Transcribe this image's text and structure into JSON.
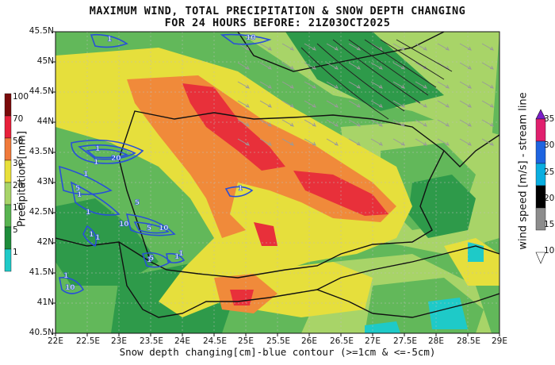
{
  "title_line1": "MAXIMUM WIND, TOTAL PRECIPITATION & SNOW DEPTH CHANGING",
  "title_line2": "FOR 24 HOURS BEFORE: 21Z03OCT2025",
  "x_axis_caption": "Snow depth changing[cm]-blue contour (>=1cm & <=-5cm)",
  "x_ticks": [
    "22E",
    "22.5E",
    "23E",
    "23.5E",
    "24E",
    "24.5E",
    "25E",
    "25.5E",
    "26E",
    "26.5E",
    "27E",
    "27.5E",
    "28E",
    "28.5E",
    "29E"
  ],
  "y_ticks": [
    "45.5N",
    "45N",
    "44.5N",
    "44N",
    "43.5N",
    "43N",
    "42.5N",
    "42N",
    "41.5N",
    "41N",
    "40.5N"
  ],
  "precip_colorbar": {
    "title": "Precipitation [mm]",
    "labels": [
      "100",
      "70",
      "50",
      "30",
      "20",
      "10",
      "5",
      "1"
    ],
    "colors": [
      "#7a0a0a",
      "#e8203a",
      "#f07a3a",
      "#e8e03a",
      "#a8d468",
      "#58b450",
      "#1e8c3a",
      "#1ecac8"
    ]
  },
  "wind_colorbar": {
    "title": "wind speed [m/s] - stream line",
    "labels": [
      "35",
      "30",
      "25",
      "20",
      "15",
      "10"
    ],
    "colors": [
      "#7a1ec8",
      "#e0206e",
      "#1e64e0",
      "#0aaee0",
      "#000000",
      "#8c8c8c",
      "#ffffff"
    ]
  },
  "snow_contour_labels": [
    "1",
    "1",
    "5",
    "10",
    "20",
    "1",
    "1",
    "1",
    "5",
    "1",
    "5",
    "1",
    "10",
    "1",
    "5",
    "1",
    "1",
    "1",
    "10",
    "1",
    "10",
    "1"
  ],
  "colors": {
    "land_dark_green": "#2e9a4a",
    "land_mid_green": "#62b85a",
    "land_light_green": "#a8d468",
    "yellow": "#e6df3c",
    "orange": "#f08a3a",
    "red": "#e8303a",
    "cyan": "#1ecac8",
    "border": "#111111",
    "snow_contour": "#2850d8",
    "stream": "#9a9a9a"
  }
}
